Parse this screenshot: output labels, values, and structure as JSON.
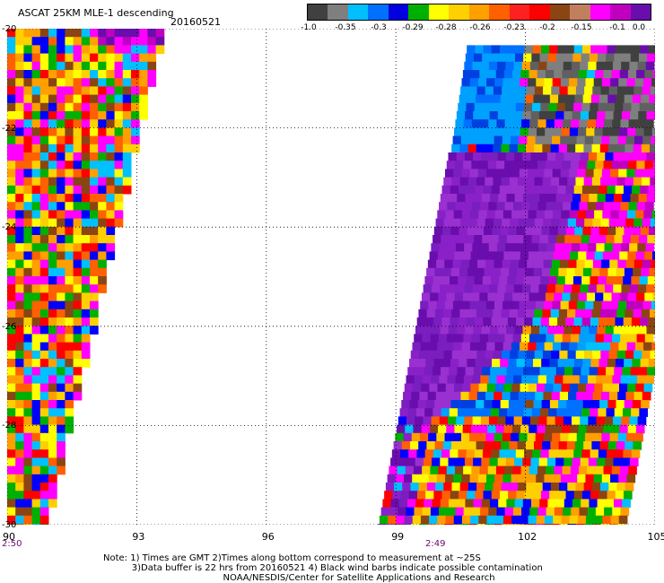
{
  "header": {
    "title": "ASCAT 25KM MLE-1 descending",
    "date": "20160521"
  },
  "colorbar": {
    "colors": [
      "#404040",
      "#7f7f7f",
      "#00c0ff",
      "#0070ff",
      "#0000e0",
      "#00b000",
      "#ffff00",
      "#ffd000",
      "#ffa000",
      "#ff6000",
      "#ff2020",
      "#ff0000",
      "#8b4513",
      "#c08060",
      "#ff00ff",
      "#c000c0",
      "#6a0dad"
    ],
    "labels": [
      "-1.0",
      "-0.35",
      "-0.3",
      "-0.29",
      "-0.28",
      "-0.26",
      "-0.23",
      "-0.2",
      "-0.15",
      "-0.1",
      "0.0"
    ]
  },
  "axes": {
    "y_labels": [
      "-20",
      "-22",
      "-24",
      "-26",
      "-28",
      "-30"
    ],
    "x_labels": [
      "90",
      "93",
      "96",
      "99",
      "102",
      "105"
    ],
    "lon_range": [
      90,
      105
    ],
    "lat_range": [
      -30,
      -20
    ]
  },
  "times": {
    "left": "2:50",
    "right": "2:49"
  },
  "notes": {
    "line1": "Note: 1) Times are GMT 2)Times along bottom correspond to measurement at ~25S",
    "line2": "3)Data buffer is 22 hrs from 20160521 4) Black wind barbs indicate possible contamination",
    "line3": "NOAA/NESDIS/Center for Satellite Applications and Research"
  },
  "palette": {
    "noisy": [
      "#ff0000",
      "#ffff00",
      "#ffa000",
      "#0000ff",
      "#00b000",
      "#00c0ff",
      "#ff00ff",
      "#8b4513",
      "#ff6000",
      "#ffd000"
    ],
    "purple": [
      "#6a0dad",
      "#7a1ec0",
      "#8a20c8",
      "#9a30d0"
    ],
    "gray": [
      "#404040",
      "#606060",
      "#7f7f7f"
    ],
    "blue": [
      "#00a0ff",
      "#0070ff",
      "#0040e0"
    ]
  }
}
